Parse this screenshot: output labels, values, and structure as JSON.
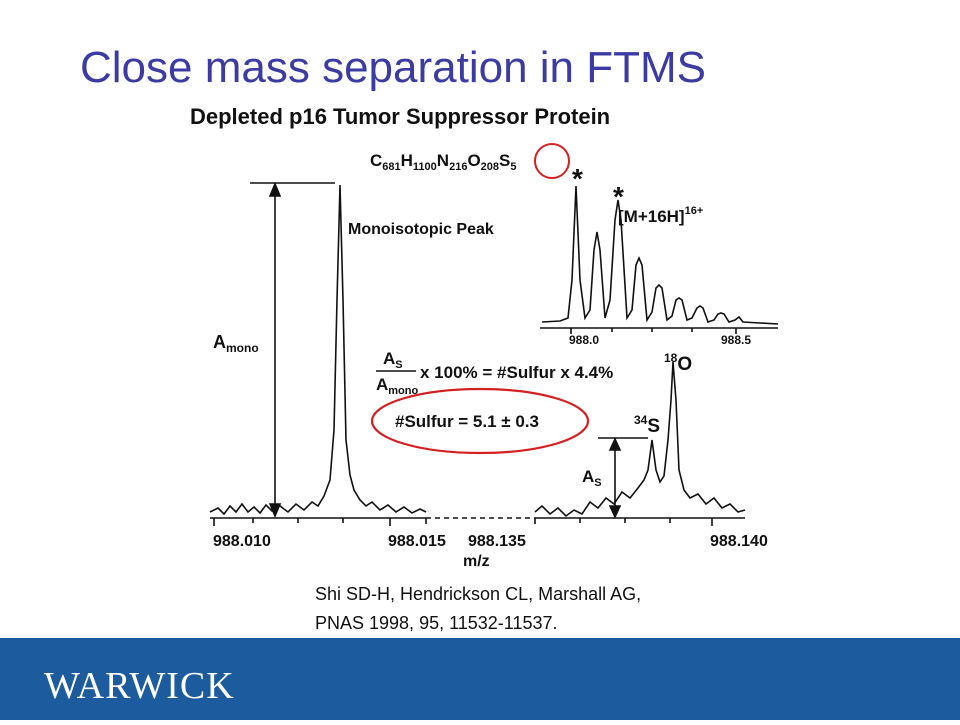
{
  "slide": {
    "title": "Close mass separation in FTMS",
    "figure": {
      "title": "Depleted p16 Tumor Suppressor Protein",
      "formula": [
        {
          "element": "C",
          "count": "681"
        },
        {
          "element": "H",
          "count": "1100"
        },
        {
          "element": "N",
          "count": "216"
        },
        {
          "element": "O",
          "count": "208"
        },
        {
          "element": "S",
          "count": "5"
        }
      ],
      "peak_label": "Monoisotopic Peak",
      "a_mono": {
        "main": "A",
        "sub": "mono"
      },
      "a_s": {
        "main": "A",
        "sub": "S"
      },
      "ion": {
        "main": "[M+16H]",
        "sup": "16+"
      },
      "star": "*",
      "o18": {
        "sup": "18",
        "main": "O"
      },
      "s34": {
        "sup": "34",
        "main": "S"
      },
      "equation_rhs": "x 100% = #Sulfur x 4.4%",
      "result": "#Sulfur = 5.1 ± 0.3",
      "x_labels": [
        "988.010",
        "988.015",
        "988.135",
        "988.140"
      ],
      "x_axis_title": "m/z",
      "inset_labels": [
        "988.0",
        "988.5"
      ]
    },
    "citation": [
      "Shi SD-H, Hendrickson CL, Marshall AG,",
      "PNAS 1998, 95, 11532-11537."
    ],
    "logo": "WARWICK"
  }
}
